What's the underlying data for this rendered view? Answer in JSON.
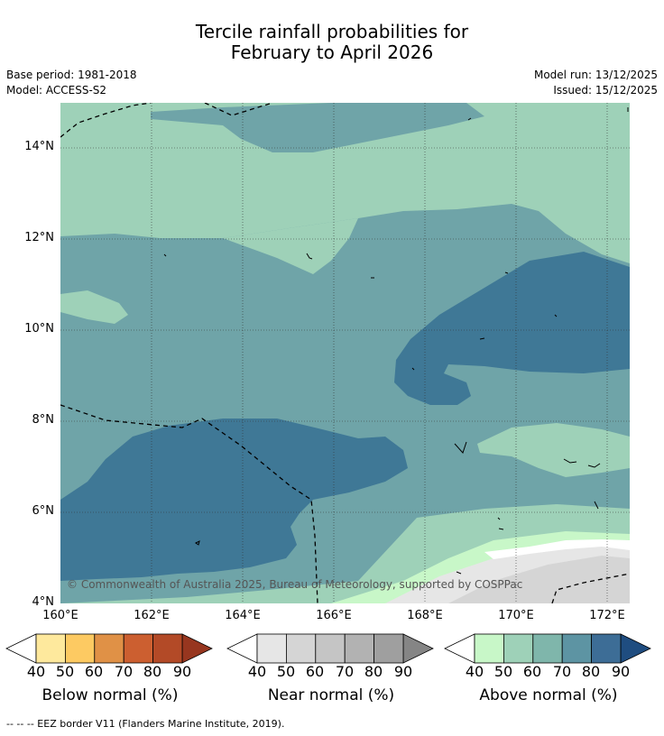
{
  "title": {
    "line1": "Tercile rainfall probabilities for",
    "line2": "February to April 2026"
  },
  "meta": {
    "base_period": "Base period: 1981-2018",
    "model": "Model: ACCESS-S2",
    "model_run": "Model run: 13/12/2025",
    "issued": "Issued: 15/12/2025"
  },
  "map": {
    "copyright": "© Commonwealth of Australia 2025, Bureau of Meteorology, supported by COSPPac",
    "lat_ticks": [
      "14°N",
      "12°N",
      "10°N",
      "8°N",
      "6°N",
      "4°N"
    ],
    "lon_ticks": [
      "160°E",
      "162°E",
      "164°E",
      "166°E",
      "168°E",
      "170°E",
      "172°E"
    ]
  },
  "legend": {
    "below": {
      "label": "Below normal (%)",
      "ticks": [
        "40",
        "50",
        "60",
        "70",
        "80",
        "90"
      ],
      "colors": [
        "#fee99d",
        "#fdca62",
        "#e09146",
        "#cc5f30",
        "#b34a27",
        "#97361f"
      ]
    },
    "near": {
      "label": "Near normal (%)",
      "ticks": [
        "40",
        "50",
        "60",
        "70",
        "80",
        "90"
      ],
      "colors": [
        "#e6e6e6",
        "#d5d5d5",
        "#c5c5c5",
        "#b2b2b2",
        "#9f9f9f",
        "#858585"
      ]
    },
    "above": {
      "label": "Above normal (%)",
      "ticks": [
        "40",
        "50",
        "60",
        "70",
        "80",
        "90"
      ],
      "colors": [
        "#c8f7c8",
        "#9ed1b8",
        "#7fb6ab",
        "#5d94a3",
        "#3d6d96",
        "#1f4d80"
      ]
    }
  },
  "footnote": "--  --  -- EEZ border V11 (Flanders Marine Institute, 2019)."
}
